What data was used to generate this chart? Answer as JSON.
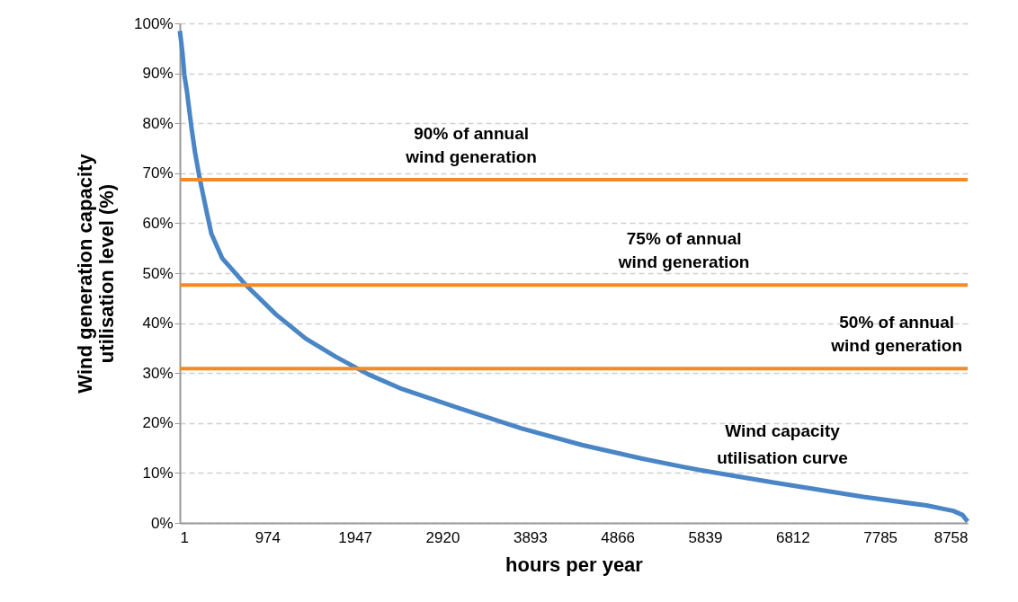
{
  "chart_data": {
    "type": "line",
    "xlabel": "hours per year",
    "ylabel": "Wind generation capacity utilisation level (%)",
    "xlim": [
      1,
      8758
    ],
    "xticks": [
      1,
      974,
      1947,
      2920,
      3893,
      4866,
      5839,
      6812,
      7785,
      8758
    ],
    "ylim": [
      0,
      100
    ],
    "yticks": [
      {
        "value": 0,
        "label": "0%"
      },
      {
        "value": 10,
        "label": "10%"
      },
      {
        "value": 20,
        "label": "20%"
      },
      {
        "value": 30,
        "label": "30%"
      },
      {
        "value": 40,
        "label": "40%"
      },
      {
        "value": 50,
        "label": "50%"
      },
      {
        "value": 60,
        "label": "60%"
      },
      {
        "value": 70,
        "label": "70%"
      },
      {
        "value": 80,
        "label": "80%"
      },
      {
        "value": 90,
        "label": "90%"
      },
      {
        "value": 100,
        "label": "100%"
      }
    ],
    "grid": "y",
    "marker": "none",
    "line_style": "solid",
    "series": [
      {
        "name": "Wind capacity utilisation curve",
        "color": "#4a86c5",
        "x": [
          1,
          18,
          31,
          51,
          81,
          131,
          171,
          221,
          281,
          351,
          471,
          731,
          1071,
          1401,
          1731,
          2101,
          2471,
          3131,
          3801,
          4471,
          5131,
          5771,
          6601,
          7601,
          8300,
          8600,
          8700,
          8758
        ],
        "values": [
          98.5,
          96,
          93.9,
          89.7,
          86.2,
          79,
          74,
          69,
          63.8,
          57.9,
          53,
          47.7,
          41.7,
          36.9,
          33.3,
          29.7,
          26.8,
          22.8,
          18.9,
          15.6,
          12.9,
          10.6,
          8.1,
          5.2,
          3.5,
          2.4,
          1.6,
          0.3
        ]
      }
    ],
    "ref_lines": [
      {
        "axis": "y",
        "value": 68.7,
        "label": "90% of annual wind generation",
        "color": "#f28a27"
      },
      {
        "axis": "y",
        "value": 47.6,
        "label": "75% of annual wind generation",
        "color": "#f28a27"
      },
      {
        "axis": "y",
        "value": 30.9,
        "label": "50% of annual wind generation",
        "color": "#f28a27"
      }
    ]
  }
}
